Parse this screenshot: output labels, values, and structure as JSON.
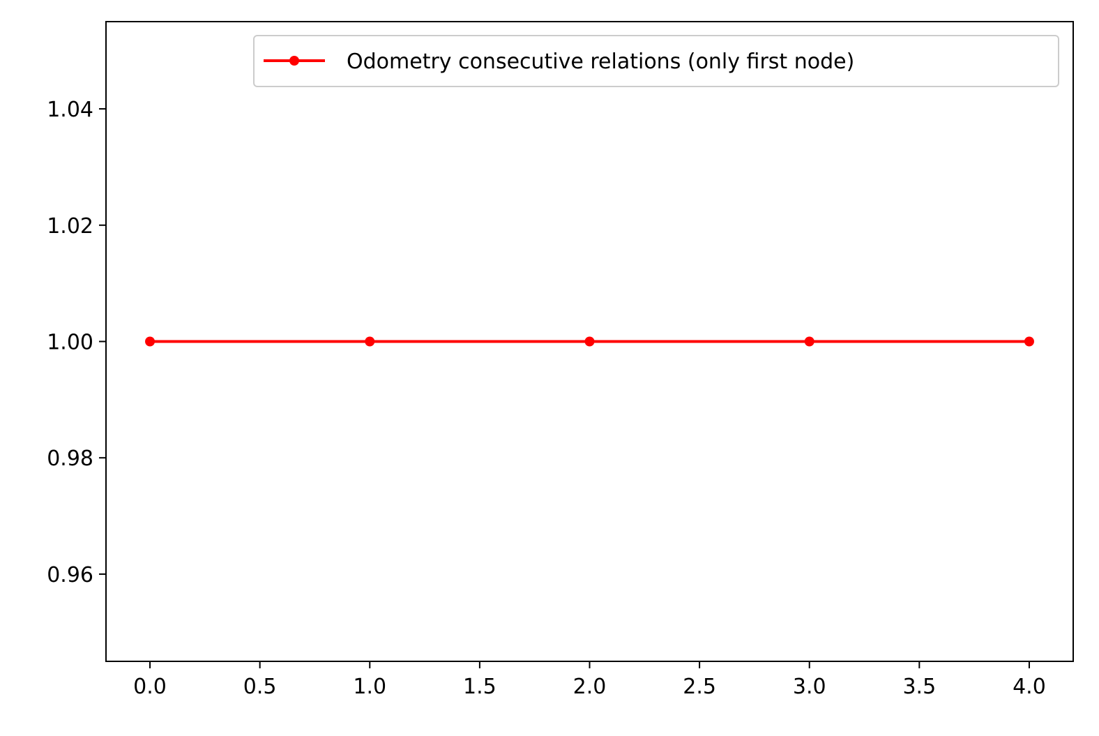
{
  "chart_data": {
    "type": "line",
    "title": "",
    "xlabel": "",
    "ylabel": "",
    "xlim": [
      -0.2,
      4.2
    ],
    "ylim": [
      0.945,
      1.055
    ],
    "x_ticks": [
      0.0,
      0.5,
      1.0,
      1.5,
      2.0,
      2.5,
      3.0,
      3.5,
      4.0
    ],
    "x_tick_labels": [
      "0.0",
      "0.5",
      "1.0",
      "1.5",
      "2.0",
      "2.5",
      "3.0",
      "3.5",
      "4.0"
    ],
    "y_ticks": [
      0.96,
      0.98,
      1.0,
      1.02,
      1.04
    ],
    "y_tick_labels": [
      "0.96",
      "0.98",
      "1.00",
      "1.02",
      "1.04"
    ],
    "grid": false,
    "legend_position": "top-right",
    "series": [
      {
        "name": "Odometry consecutive relations (only first node)",
        "color": "#ff0000",
        "marker": "circle",
        "x": [
          0,
          1,
          2,
          3,
          4
        ],
        "y": [
          1.0,
          1.0,
          1.0,
          1.0,
          1.0
        ]
      }
    ]
  }
}
